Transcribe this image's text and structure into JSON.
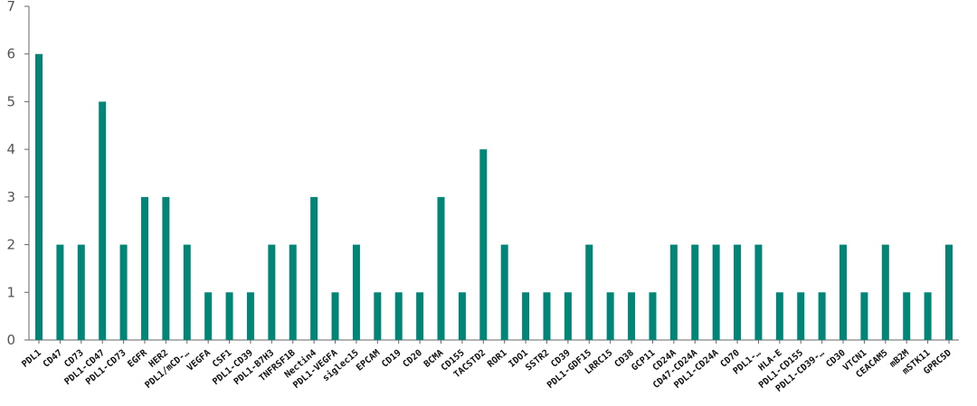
{
  "chart_data": {
    "type": "bar",
    "title": "",
    "xlabel": "",
    "ylabel": "",
    "ylim": [
      0,
      7
    ],
    "yticks": [
      0,
      1,
      2,
      3,
      4,
      5,
      6,
      7
    ],
    "grid": false,
    "bar_color": "#008577",
    "categories": [
      "PDL1",
      "CD47",
      "CD73",
      "PDL1-CD47",
      "PDL1-CD73",
      "EGFR",
      "HER2",
      "PDL1/mCD-…",
      "VEGFA",
      "CSF1",
      "PDL1-CD39",
      "PDL1-B7H3",
      "TNFRSF1B",
      "Nectin4",
      "PDL1-VEGFA",
      "siglec15",
      "EPCAM",
      "CD19",
      "CD20",
      "BCMA",
      "CD155",
      "TACSTD2",
      "ROR1",
      "IDO1",
      "SSTR2",
      "CD39",
      "PDL1-GDF15",
      "LRRC15",
      "CD38",
      "GCP11",
      "CD24A",
      "CD47-CD24A",
      "PDL1-CD24A",
      "CD70",
      "PDL1-…",
      "HLA-E",
      "PDL1-CD155",
      "PDL1-CD39-…",
      "CD30",
      "VTCN1",
      "CEACAM5",
      "mB2M",
      "mSTK11",
      "GPRC5D"
    ],
    "values": [
      6,
      2,
      2,
      5,
      2,
      3,
      3,
      2,
      1,
      1,
      1,
      2,
      2,
      3,
      1,
      2,
      1,
      1,
      1,
      3,
      1,
      4,
      2,
      1,
      1,
      1,
      2,
      1,
      1,
      1,
      2,
      2,
      2,
      2,
      2,
      1,
      1,
      1,
      2,
      1,
      2,
      1,
      1,
      2
    ]
  }
}
